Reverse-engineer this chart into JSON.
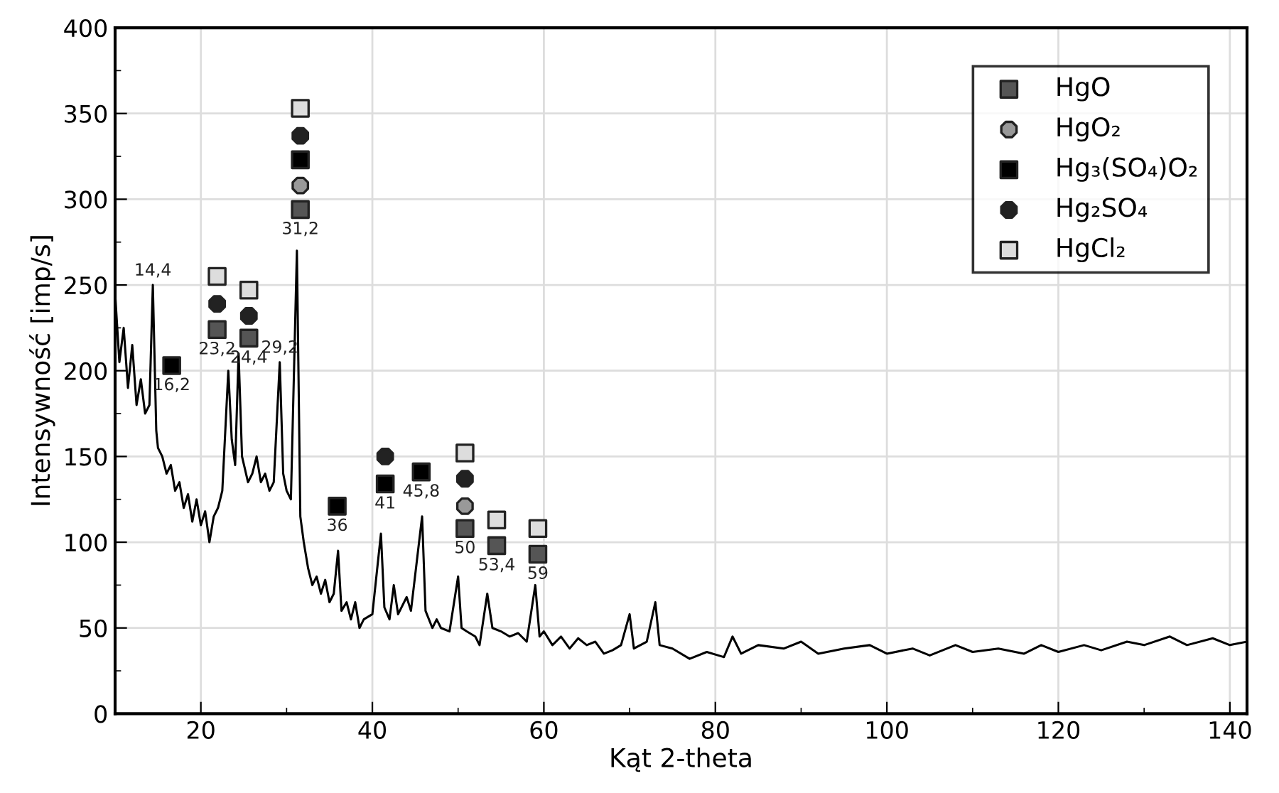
{
  "chart_data": {
    "type": "line",
    "xlabel": "Kąt 2-theta",
    "ylabel": "Intensywność [imp/s]",
    "xlim": [
      10,
      142
    ],
    "ylim": [
      0,
      400
    ],
    "xticks": [
      20,
      {
        "value": 30,
        "label": null
      },
      40,
      {
        "value": 50,
        "label": null
      },
      60,
      {
        "value": 70,
        "label": null
      },
      80,
      {
        "value": 90,
        "label": null
      },
      100,
      {
        "value": 110,
        "label": null
      },
      120,
      {
        "value": 130,
        "label": null
      },
      140
    ],
    "yticks": [
      0,
      {
        "value": 25,
        "label": null
      },
      50,
      {
        "value": 75,
        "label": null
      },
      100,
      {
        "value": 125,
        "label": null
      },
      150,
      {
        "value": 175,
        "label": null
      },
      200,
      {
        "value": 225,
        "label": null
      },
      250,
      {
        "value": 275,
        "label": null
      },
      300,
      {
        "value": 325,
        "label": null
      },
      350,
      {
        "value": 375,
        "label": null
      },
      400
    ],
    "grid": true,
    "legend": "top right",
    "series": [
      {
        "color": "#000000",
        "marker": "none",
        "line_style": "solid",
        "x": [
          10,
          10.5,
          11,
          11.5,
          12,
          12.5,
          13,
          13.5,
          14,
          14.4,
          14.8,
          15,
          15.5,
          16,
          16.5,
          17,
          17.5,
          18,
          18.5,
          19,
          19.5,
          20,
          20.5,
          21,
          21.5,
          22,
          22.5,
          23.2,
          23.6,
          24,
          24.4,
          24.8,
          25.5,
          26,
          26.5,
          27,
          27.5,
          28,
          28.5,
          29.2,
          29.6,
          30,
          30.5,
          31.2,
          31.6,
          32,
          32.5,
          33,
          33.5,
          34,
          34.5,
          35,
          35.5,
          36,
          36.4,
          37,
          37.5,
          38,
          38.5,
          39,
          40,
          41,
          41.4,
          42,
          42.5,
          43,
          44,
          44.5,
          45.8,
          46.2,
          47,
          47.5,
          48,
          49,
          50,
          50.4,
          51,
          52,
          52.5,
          53.4,
          54,
          55,
          56,
          57,
          58,
          59,
          59.5,
          60,
          61,
          62,
          63,
          64,
          65,
          66,
          67,
          68,
          69,
          70,
          70.5,
          72,
          73,
          73.5,
          75,
          77,
          79,
          81,
          82,
          83,
          85,
          88,
          90,
          92,
          95,
          98,
          100,
          103,
          105,
          108,
          110,
          113,
          116,
          118,
          120,
          123,
          125,
          128,
          130,
          133,
          135,
          138,
          140,
          142
        ],
        "values": [
          245,
          205,
          225,
          190,
          215,
          180,
          195,
          175,
          180,
          250,
          165,
          155,
          150,
          140,
          145,
          130,
          135,
          120,
          128,
          112,
          125,
          110,
          118,
          100,
          115,
          120,
          130,
          200,
          160,
          145,
          210,
          150,
          135,
          140,
          150,
          135,
          140,
          130,
          135,
          205,
          140,
          130,
          125,
          270,
          115,
          100,
          85,
          75,
          80,
          70,
          78,
          65,
          70,
          95,
          60,
          65,
          55,
          65,
          50,
          55,
          58,
          105,
          62,
          55,
          75,
          58,
          68,
          60,
          115,
          60,
          50,
          55,
          50,
          48,
          80,
          50,
          48,
          45,
          40,
          70,
          50,
          48,
          45,
          47,
          42,
          75,
          45,
          48,
          40,
          45,
          38,
          44,
          40,
          42,
          35,
          37,
          40,
          58,
          38,
          42,
          65,
          40,
          38,
          32,
          36,
          33,
          45,
          35,
          40,
          38,
          42,
          35,
          38,
          40,
          35,
          38,
          34,
          40,
          36,
          38,
          35,
          40,
          36,
          40,
          37,
          42,
          40,
          45,
          40,
          44,
          40,
          42
        ]
      },
      {
        "type": "scatter",
        "name": "HgO",
        "color": "#555555",
        "marker": "square",
        "x": [
          21.9,
          25.6,
          31.6,
          50.8,
          54.5,
          59.3
        ],
        "values": [
          224,
          219,
          294,
          108,
          98,
          93
        ]
      },
      {
        "type": "scatter",
        "name": "HgO₂",
        "color": "#999999",
        "marker": "circle",
        "x": [
          31.6,
          50.8
        ],
        "values": [
          308,
          121
        ]
      },
      {
        "type": "scatter",
        "name": "Hg₃(SO₄)O₂",
        "color": "#000000",
        "marker": "square",
        "x": [
          16.6,
          31.6,
          35.9,
          41.5,
          45.7
        ],
        "values": [
          203,
          323,
          121,
          134,
          141
        ]
      },
      {
        "type": "scatter",
        "name": "Hg₂SO₄",
        "color": "#222222",
        "marker": "circle",
        "x": [
          21.9,
          25.6,
          31.6,
          41.5,
          50.8
        ],
        "values": [
          239,
          232,
          337,
          150,
          137
        ]
      },
      {
        "type": "scatter",
        "name": "HgCl₂",
        "color": "#dddddd",
        "marker": "square",
        "x": [
          21.9,
          25.6,
          31.6,
          50.8,
          54.5,
          59.3
        ],
        "values": [
          255,
          247,
          353,
          152,
          113,
          108
        ]
      }
    ],
    "annotations": [
      {
        "text": "14,4",
        "x": 14.4,
        "y": 250
      },
      {
        "text": "16,2",
        "x": 16.6,
        "y": 203
      },
      {
        "text": "23,2",
        "x": 21.9,
        "y": 224
      },
      {
        "text": "24,4",
        "x": 25.6,
        "y": 219
      },
      {
        "text": "29,2",
        "x": 29.2,
        "y": 205
      },
      {
        "text": "31,2",
        "x": 31.6,
        "y": 294
      },
      {
        "text": "36",
        "x": 35.9,
        "y": 121
      },
      {
        "text": "41",
        "x": 41.5,
        "y": 134
      },
      {
        "text": "45,8",
        "x": 45.7,
        "y": 141
      },
      {
        "text": "50",
        "x": 50.8,
        "y": 108
      },
      {
        "text": "53,4",
        "x": 54.5,
        "y": 98
      },
      {
        "text": "59",
        "x": 59.3,
        "y": 93
      }
    ]
  }
}
